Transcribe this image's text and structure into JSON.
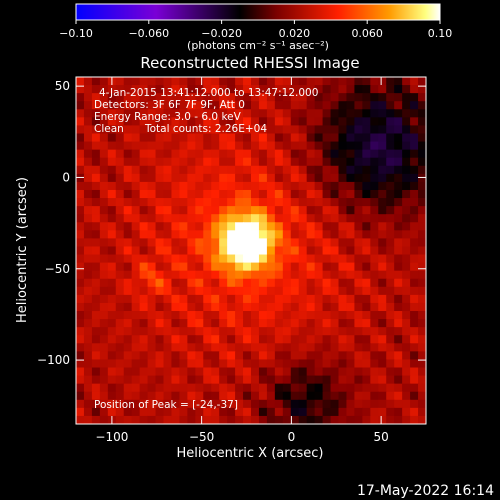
{
  "chart_data": {
    "type": "heatmap",
    "title": "Reconstructed RHESSI Image",
    "xlabel": "Heliocentric X (arcsec)",
    "ylabel": "Heliocentric Y (arcsec)",
    "xlim": [
      -120,
      75
    ],
    "ylim": [
      -135,
      55
    ],
    "x_ticks": [
      -100,
      -50,
      0,
      50
    ],
    "x_tick_labels": [
      "−100",
      "−50",
      "0",
      "50"
    ],
    "y_ticks": [
      -100,
      -50,
      0,
      50
    ],
    "y_tick_labels": [
      "−100",
      "−50",
      "0",
      "50"
    ],
    "colorbar": {
      "range": [
        -0.1,
        0.1
      ],
      "ticks": [
        -0.1,
        -0.06,
        -0.02,
        0.02,
        0.06,
        0.1
      ],
      "tick_labels": [
        "−0.10",
        "−0.060",
        "−0.020",
        "0.020",
        "0.060",
        "0.10"
      ],
      "units": "(photons cm⁻² s⁻¹ asec⁻²)",
      "colors": [
        "#0000ff",
        "#7a00d6",
        "#000000",
        "#8a0000",
        "#ff2000",
        "#ff9a00",
        "#ffff80",
        "#ffffff"
      ]
    },
    "peak": [
      -24,
      -37
    ],
    "annotations": {
      "time": "4-Jan-2015 13:41:12.000 to 13:47:12.000",
      "detectors": "Detectors: 3F 6F 7F 9F, Att 0",
      "energy": "Energy Range: 3.0 - 6.0 keV",
      "method": "Clean",
      "counts": "Total counts: 2.26E+04",
      "peak_label": "Position of Peak = [-24,-37]"
    }
  },
  "footer": {
    "date": "17-May-2022 16:14"
  }
}
